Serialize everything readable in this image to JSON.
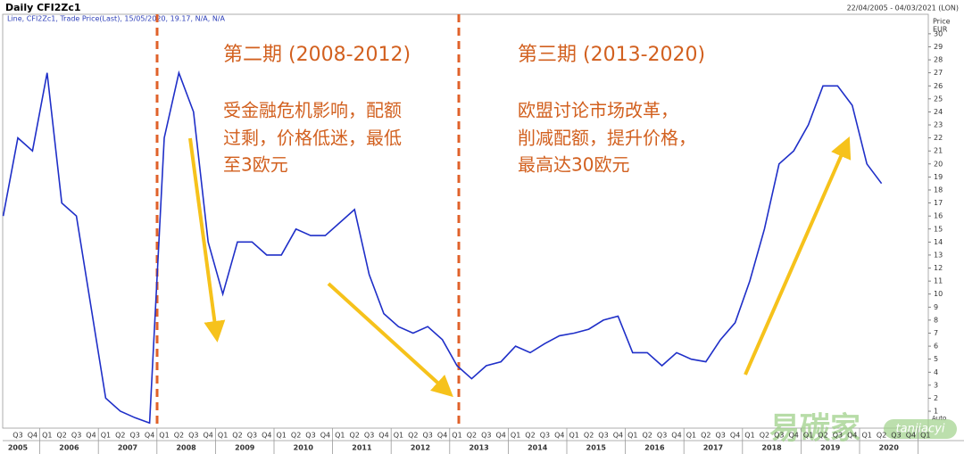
{
  "chart_data": {
    "type": "line",
    "title": "Daily CFI2Zc1",
    "subtitle": "Line, CFI2Zc1, Trade Price(Last), 15/05/2020, 19.17, N/A, N/A",
    "date_range": "22/04/2005 - 04/03/2021 (LON)",
    "y_axis_label": [
      "Price",
      "EUR"
    ],
    "y_scale_mode": "Auto",
    "annotations": [
      {
        "title": "第二期 (2008-2012)",
        "lines": [
          "受金融危机影响，配额",
          "过剩，价格低迷，最低",
          "至3欧元"
        ]
      },
      {
        "title": "第三期 (2013-2020)",
        "lines": [
          "欧盟讨论市场改革，",
          "削减配额，提升价格，",
          "最高达30欧元"
        ]
      }
    ],
    "watermark": [
      "易碳家",
      "tanjiacyi"
    ],
    "categories": [
      null,
      "Q3",
      "Q4",
      "Q1",
      "Q2",
      "Q3",
      "Q4",
      "Q1",
      "Q2",
      "Q3",
      "Q4",
      "Q1",
      "Q2",
      "Q3",
      "Q4",
      "Q1",
      "Q2",
      "Q3",
      "Q4",
      "Q1",
      "Q2",
      "Q3",
      "Q4",
      "Q1",
      "Q2",
      "Q3",
      "Q4",
      "Q1",
      "Q2",
      "Q3",
      "Q4",
      "Q1",
      "Q2",
      "Q3",
      "Q4",
      "Q1",
      "Q2",
      "Q3",
      "Q4",
      "Q1",
      "Q2",
      "Q3",
      "Q4",
      "Q1",
      "Q2",
      "Q3",
      "Q4",
      "Q1",
      "Q2",
      "Q3",
      "Q4",
      "Q1",
      "Q2",
      "Q3",
      "Q4",
      "Q1",
      "Q2",
      "Q3",
      "Q4",
      "Q1",
      "Q2",
      "Q3",
      "Q4",
      "Q1"
    ],
    "years": [
      "2005",
      "2006",
      "2007",
      "2008",
      "2009",
      "2010",
      "2011",
      "2012",
      "2013",
      "2014",
      "2015",
      "2016",
      "2017",
      "2018",
      "2019",
      "2020"
    ],
    "series": [
      {
        "name": "CFI2Zc1",
        "color": "#1f2fc8",
        "values": [
          16,
          22,
          21,
          27,
          17,
          16,
          9,
          2,
          1,
          0.5,
          0.1,
          22,
          27,
          24,
          14,
          10,
          14,
          14,
          13,
          13,
          15,
          14.5,
          14.5,
          15.5,
          16.5,
          11.5,
          8.5,
          7.5,
          7,
          7.5,
          6.5,
          4.5,
          3.5,
          4.5,
          4.8,
          6,
          5.5,
          6.2,
          6.8,
          7,
          7.3,
          8,
          8.3,
          5.5,
          5.5,
          4.5,
          5.5,
          5,
          4.8,
          6.5,
          7.8,
          11,
          15,
          20,
          21,
          23,
          26,
          26,
          24.5,
          20,
          18.5,
          null,
          null,
          null
        ]
      }
    ],
    "ylim": [
      -0.3,
      31.5
    ],
    "yticks": [
      1,
      2,
      3,
      4,
      5,
      6,
      7,
      8,
      9,
      10,
      11,
      12,
      13,
      14,
      15,
      16,
      17,
      18,
      19,
      20,
      21,
      22,
      23,
      24,
      25,
      26,
      27,
      28,
      29,
      30
    ],
    "grid": false
  }
}
